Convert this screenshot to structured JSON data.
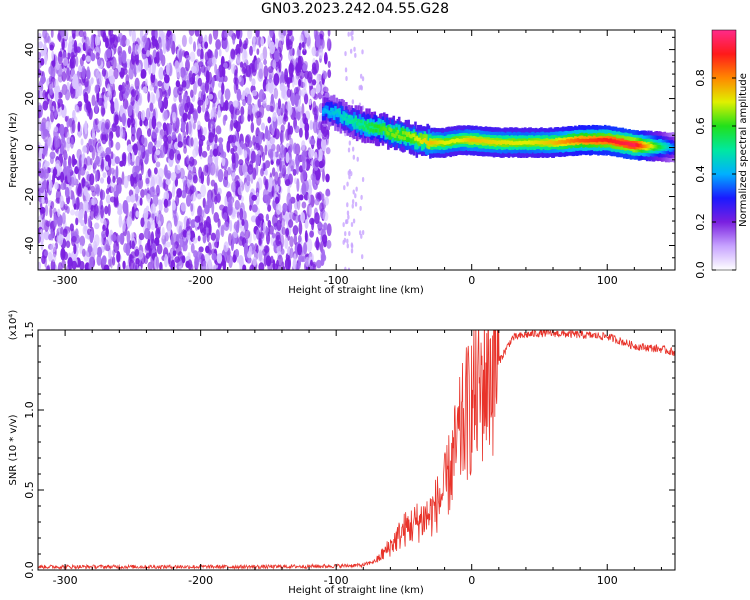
{
  "title": "GN03.2023.242.04.55.G28",
  "chart_data": [
    {
      "type": "heatmap",
      "xlabel": "Height of straight line (km)",
      "ylabel": "Frequency (Hz)",
      "xlim": [
        -320,
        150
      ],
      "ylim": [
        -50,
        48
      ],
      "x_ticks": [
        -300,
        -200,
        -100,
        0,
        100
      ],
      "y_ticks": [
        -40,
        -20,
        0,
        20,
        40
      ],
      "colorbar": {
        "label": "Normalized spectral amplitude",
        "range": [
          0,
          1
        ],
        "ticks": [
          "0.0",
          "0.2",
          "0.4",
          "0.6",
          "0.8"
        ],
        "colors": [
          "#ffffff",
          "#c7a3ff",
          "#7a1fe0",
          "#1a1aff",
          "#00b0ff",
          "#00e8a0",
          "#22e01a",
          "#e0f000",
          "#ff8800",
          "#ff1a1a",
          "#ff2a8a"
        ]
      },
      "ridge": {
        "x": [
          -110,
          -100,
          -90,
          -80,
          -70,
          -60,
          -50,
          -40,
          -30,
          -20,
          -10,
          0,
          20,
          40,
          60,
          80,
          100,
          120,
          150
        ],
        "frequency": [
          15,
          14,
          11,
          9,
          8,
          6,
          5,
          3,
          2,
          2,
          3,
          3,
          2,
          2,
          2,
          3,
          3,
          1,
          0
        ],
        "amplitude": [
          0.4,
          0.45,
          0.5,
          0.55,
          0.6,
          0.65,
          0.65,
          0.7,
          0.75,
          0.7,
          0.7,
          0.75,
          0.72,
          0.7,
          0.75,
          0.85,
          0.9,
          0.95,
          0.35
        ]
      },
      "noise_region_x": [
        -320,
        -105
      ]
    },
    {
      "type": "line",
      "xlabel": "Height of straight line (km)",
      "ylabel": "SNR (10 * v/v)",
      "y_multiplier": "(x10⁴)",
      "xlim": [
        -320,
        150
      ],
      "ylim": [
        0,
        15000
      ],
      "x_ticks": [
        -300,
        -200,
        -100,
        0,
        100
      ],
      "y_ticks": [
        0,
        5000,
        10000,
        15000
      ],
      "y_tick_labels": [
        "0.0",
        "0.5",
        "1.0",
        "1.5"
      ],
      "series": [
        {
          "color": "#e8332a",
          "x": [
            -320,
            -250,
            -150,
            -100,
            -80,
            -70,
            -60,
            -50,
            -40,
            -30,
            -20,
            -15,
            -10,
            -5,
            0,
            5,
            10,
            15,
            20,
            30,
            40,
            50,
            60,
            70,
            80,
            90,
            100,
            110,
            120,
            130,
            140,
            150
          ],
          "y": [
            200,
            200,
            200,
            250,
            300,
            600,
            1500,
            2500,
            3000,
            3500,
            5000,
            6500,
            8000,
            9500,
            10500,
            11000,
            12000,
            12500,
            13000,
            14500,
            14700,
            14800,
            14800,
            14750,
            14700,
            14650,
            14600,
            14300,
            14000,
            13900,
            13800,
            13600
          ]
        }
      ]
    }
  ]
}
